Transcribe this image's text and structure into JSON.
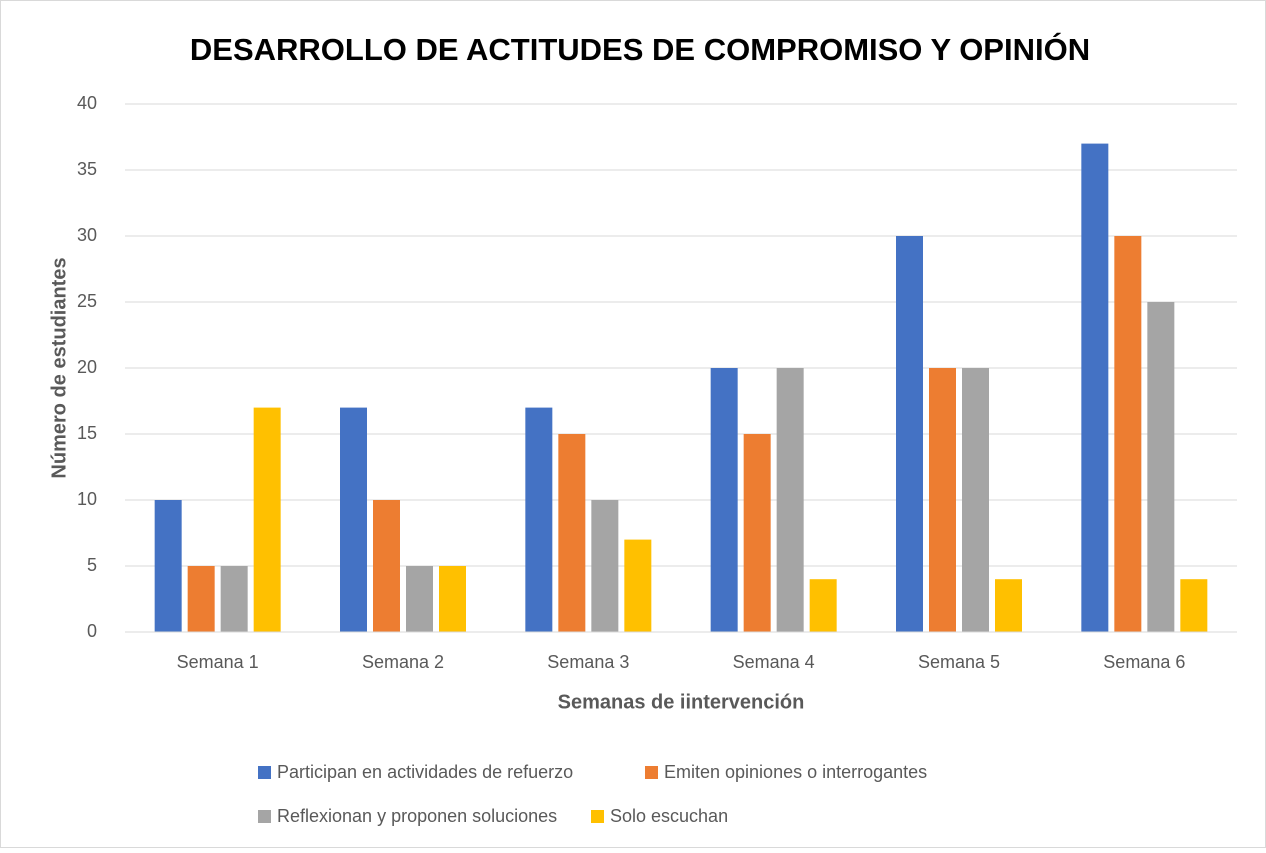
{
  "chart_data": {
    "type": "bar",
    "title": "DESARROLLO DE ACTITUDES DE COMPROMISO Y OPINIÓN",
    "xlabel": "Semanas de iintervención",
    "ylabel": "Número de estudiantes",
    "categories": [
      "Semana 1",
      "Semana 2",
      "Semana 3",
      "Semana 4",
      "Semana 5",
      "Semana 6"
    ],
    "series": [
      {
        "name": "Participan en actividades de refuerzo",
        "color": "#4472c4",
        "values": [
          10,
          17,
          17,
          20,
          30,
          37
        ]
      },
      {
        "name": "Emiten opiniones o interrogantes",
        "color": "#ed7d31",
        "values": [
          5,
          10,
          15,
          15,
          20,
          30
        ]
      },
      {
        "name": "Reflexionan y proponen soluciones",
        "color": "#a5a5a5",
        "values": [
          5,
          5,
          10,
          20,
          20,
          25
        ]
      },
      {
        "name": "Solo escuchan",
        "color": "#ffc000",
        "values": [
          17,
          5,
          7,
          4,
          4,
          4
        ]
      }
    ],
    "ylim": [
      0,
      40
    ],
    "yticks": [
      0,
      5,
      10,
      15,
      20,
      25,
      30,
      35,
      40
    ],
    "grid": true,
    "legend": "bottom"
  }
}
